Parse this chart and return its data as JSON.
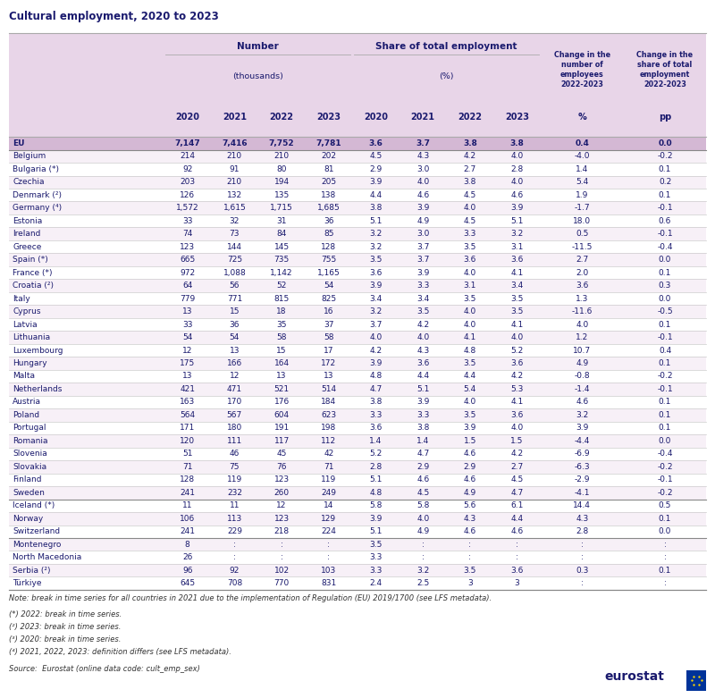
{
  "title": "Cultural employment, 2020 to 2023",
  "header_bg": "#e8d5e8",
  "eu_row_bg": "#d4b8d4",
  "separator_countries": [
    "Sweden",
    "Switzerland",
    "Türkiye"
  ],
  "rows": [
    [
      "EU",
      "7,147",
      "7,416",
      "7,752",
      "7,781",
      "3.6",
      "3.7",
      "3.8",
      "3.8",
      "0.4",
      "0.0"
    ],
    [
      "Belgium",
      "214",
      "210",
      "210",
      "202",
      "4.5",
      "4.3",
      "4.2",
      "4.0",
      "-4.0",
      "-0.2"
    ],
    [
      "Bulgaria (*)",
      "92",
      "91",
      "80",
      "81",
      "2.9",
      "3.0",
      "2.7",
      "2.8",
      "1.4",
      "0.1"
    ],
    [
      "Czechia",
      "203",
      "210",
      "194",
      "205",
      "3.9",
      "4.0",
      "3.8",
      "4.0",
      "5.4",
      "0.2"
    ],
    [
      "Denmark (²)",
      "126",
      "132",
      "135",
      "138",
      "4.4",
      "4.6",
      "4.5",
      "4.6",
      "1.9",
      "0.1"
    ],
    [
      "Germany (⁴)",
      "1,572",
      "1,615",
      "1,715",
      "1,685",
      "3.8",
      "3.9",
      "4.0",
      "3.9",
      "-1.7",
      "-0.1"
    ],
    [
      "Estonia",
      "33",
      "32",
      "31",
      "36",
      "5.1",
      "4.9",
      "4.5",
      "5.1",
      "18.0",
      "0.6"
    ],
    [
      "Ireland",
      "74",
      "73",
      "84",
      "85",
      "3.2",
      "3.0",
      "3.3",
      "3.2",
      "0.5",
      "-0.1"
    ],
    [
      "Greece",
      "123",
      "144",
      "145",
      "128",
      "3.2",
      "3.7",
      "3.5",
      "3.1",
      "-11.5",
      "-0.4"
    ],
    [
      "Spain (*)",
      "665",
      "725",
      "735",
      "755",
      "3.5",
      "3.7",
      "3.6",
      "3.6",
      "2.7",
      "0.0"
    ],
    [
      "France (*)",
      "972",
      "1,088",
      "1,142",
      "1,165",
      "3.6",
      "3.9",
      "4.0",
      "4.1",
      "2.0",
      "0.1"
    ],
    [
      "Croatia (²)",
      "64",
      "56",
      "52",
      "54",
      "3.9",
      "3.3",
      "3.1",
      "3.4",
      "3.6",
      "0.3"
    ],
    [
      "Italy",
      "779",
      "771",
      "815",
      "825",
      "3.4",
      "3.4",
      "3.5",
      "3.5",
      "1.3",
      "0.0"
    ],
    [
      "Cyprus",
      "13",
      "15",
      "18",
      "16",
      "3.2",
      "3.5",
      "4.0",
      "3.5",
      "-11.6",
      "-0.5"
    ],
    [
      "Latvia",
      "33",
      "36",
      "35",
      "37",
      "3.7",
      "4.2",
      "4.0",
      "4.1",
      "4.0",
      "0.1"
    ],
    [
      "Lithuania",
      "54",
      "54",
      "58",
      "58",
      "4.0",
      "4.0",
      "4.1",
      "4.0",
      "1.2",
      "-0.1"
    ],
    [
      "Luxembourg",
      "12",
      "13",
      "15",
      "17",
      "4.2",
      "4.3",
      "4.8",
      "5.2",
      "10.7",
      "0.4"
    ],
    [
      "Hungary",
      "175",
      "166",
      "164",
      "172",
      "3.9",
      "3.6",
      "3.5",
      "3.6",
      "4.9",
      "0.1"
    ],
    [
      "Malta",
      "13",
      "12",
      "13",
      "13",
      "4.8",
      "4.4",
      "4.4",
      "4.2",
      "-0.8",
      "-0.2"
    ],
    [
      "Netherlands",
      "421",
      "471",
      "521",
      "514",
      "4.7",
      "5.1",
      "5.4",
      "5.3",
      "-1.4",
      "-0.1"
    ],
    [
      "Austria",
      "163",
      "170",
      "176",
      "184",
      "3.8",
      "3.9",
      "4.0",
      "4.1",
      "4.6",
      "0.1"
    ],
    [
      "Poland",
      "564",
      "567",
      "604",
      "623",
      "3.3",
      "3.3",
      "3.5",
      "3.6",
      "3.2",
      "0.1"
    ],
    [
      "Portugal",
      "171",
      "180",
      "191",
      "198",
      "3.6",
      "3.8",
      "3.9",
      "4.0",
      "3.9",
      "0.1"
    ],
    [
      "Romania",
      "120",
      "111",
      "117",
      "112",
      "1.4",
      "1.4",
      "1.5",
      "1.5",
      "-4.4",
      "0.0"
    ],
    [
      "Slovenia",
      "51",
      "46",
      "45",
      "42",
      "5.2",
      "4.7",
      "4.6",
      "4.2",
      "-6.9",
      "-0.4"
    ],
    [
      "Slovakia",
      "71",
      "75",
      "76",
      "71",
      "2.8",
      "2.9",
      "2.9",
      "2.7",
      "-6.3",
      "-0.2"
    ],
    [
      "Finland",
      "128",
      "119",
      "123",
      "119",
      "5.1",
      "4.6",
      "4.6",
      "4.5",
      "-2.9",
      "-0.1"
    ],
    [
      "Sweden",
      "241",
      "232",
      "260",
      "249",
      "4.8",
      "4.5",
      "4.9",
      "4.7",
      "-4.1",
      "-0.2"
    ],
    [
      "Iceland (*)",
      "11",
      "11",
      "12",
      "14",
      "5.8",
      "5.8",
      "5.6",
      "6.1",
      "14.4",
      "0.5"
    ],
    [
      "Norway",
      "106",
      "113",
      "123",
      "129",
      "3.9",
      "4.0",
      "4.3",
      "4.4",
      "4.3",
      "0.1"
    ],
    [
      "Switzerland",
      "241",
      "229",
      "218",
      "224",
      "5.1",
      "4.9",
      "4.6",
      "4.6",
      "2.8",
      "0.0"
    ],
    [
      "Montenegro",
      "8",
      ":",
      ":",
      ":",
      "3.5",
      ":",
      ":",
      ":",
      ":",
      ":"
    ],
    [
      "North Macedonia",
      "26",
      ":",
      ":",
      ":",
      "3.3",
      ":",
      ":",
      ":",
      ":",
      ":"
    ],
    [
      "Serbia (²)",
      "96",
      "92",
      "102",
      "103",
      "3.3",
      "3.2",
      "3.5",
      "3.6",
      "0.3",
      "0.1"
    ],
    [
      "Türkiye",
      "645",
      "708",
      "770",
      "831",
      "2.4",
      "2.5",
      "3",
      "3",
      ":",
      ":"
    ]
  ],
  "note1": "Note: break in time series for all countries in 2021 due to the implementation of Regulation (EU) 2019/1700 (see LFS metadata).",
  "note2": "(*) 2022: break in time series.",
  "note3": "(²) 2023: break in time series.",
  "note4": "(³) 2020: break in time series.",
  "note5": "(⁴) 2021, 2022, 2023: definition differs (see LFS metadata).",
  "source": "Source:  Eurostat (online data code: cult_emp_sex)"
}
